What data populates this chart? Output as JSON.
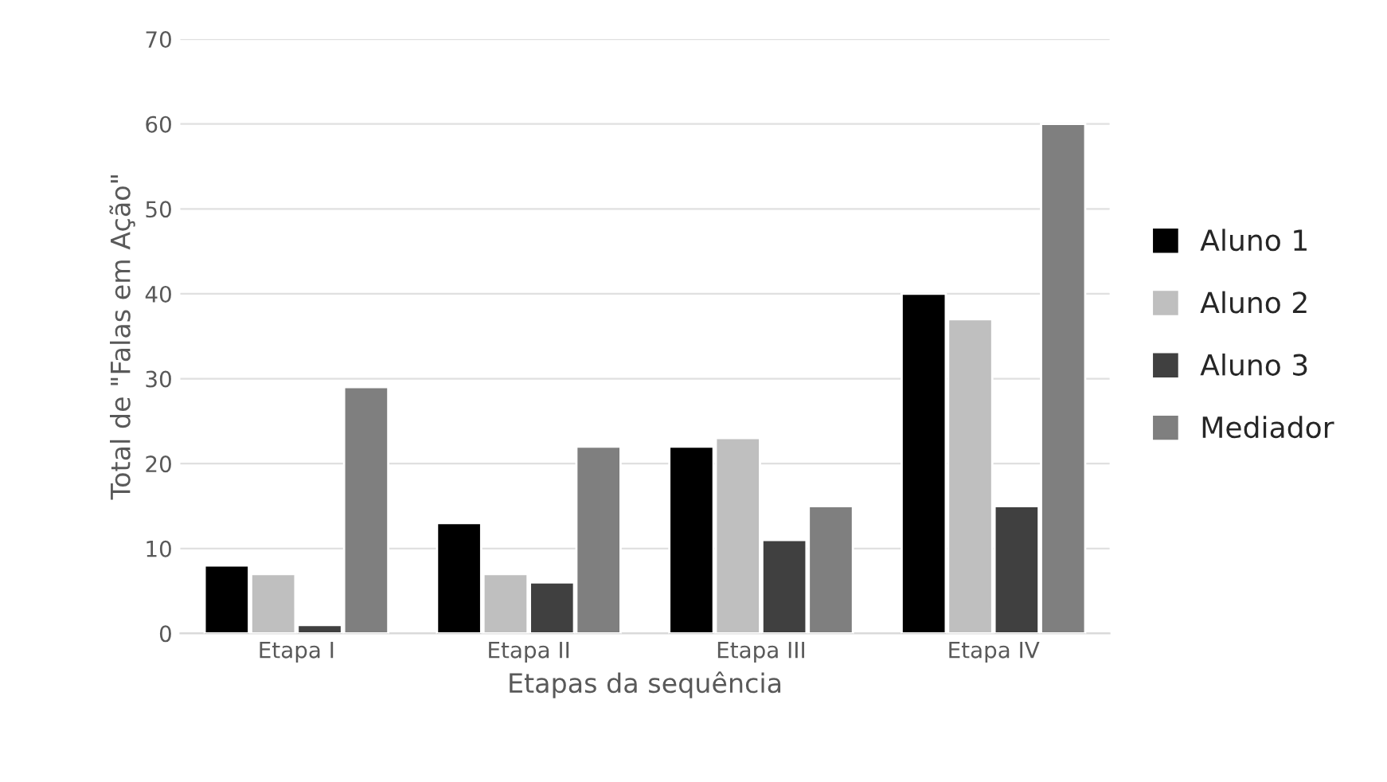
{
  "chart_data": {
    "type": "bar",
    "xlabel": "Etapas da sequência",
    "ylabel": "Total de \"Falas em Ação\"",
    "categories": [
      "Etapa I",
      "Etapa II",
      "Etapa III",
      "Etapa IV"
    ],
    "series": [
      {
        "name": "Aluno 1",
        "color": "#000000",
        "values": [
          8,
          13,
          22,
          40
        ]
      },
      {
        "name": "Aluno 2",
        "color": "#bfbfbf",
        "values": [
          7,
          7,
          23,
          37
        ]
      },
      {
        "name": "Aluno 3",
        "color": "#404040",
        "values": [
          1,
          6,
          11,
          15
        ]
      },
      {
        "name": "Mediador",
        "color": "#7f7f7f",
        "values": [
          29,
          22,
          15,
          60
        ]
      }
    ],
    "ylim": [
      0,
      70
    ],
    "yticks": [
      0,
      10,
      20,
      30,
      40,
      50,
      60,
      70
    ],
    "grid": "y",
    "legend": "right"
  }
}
